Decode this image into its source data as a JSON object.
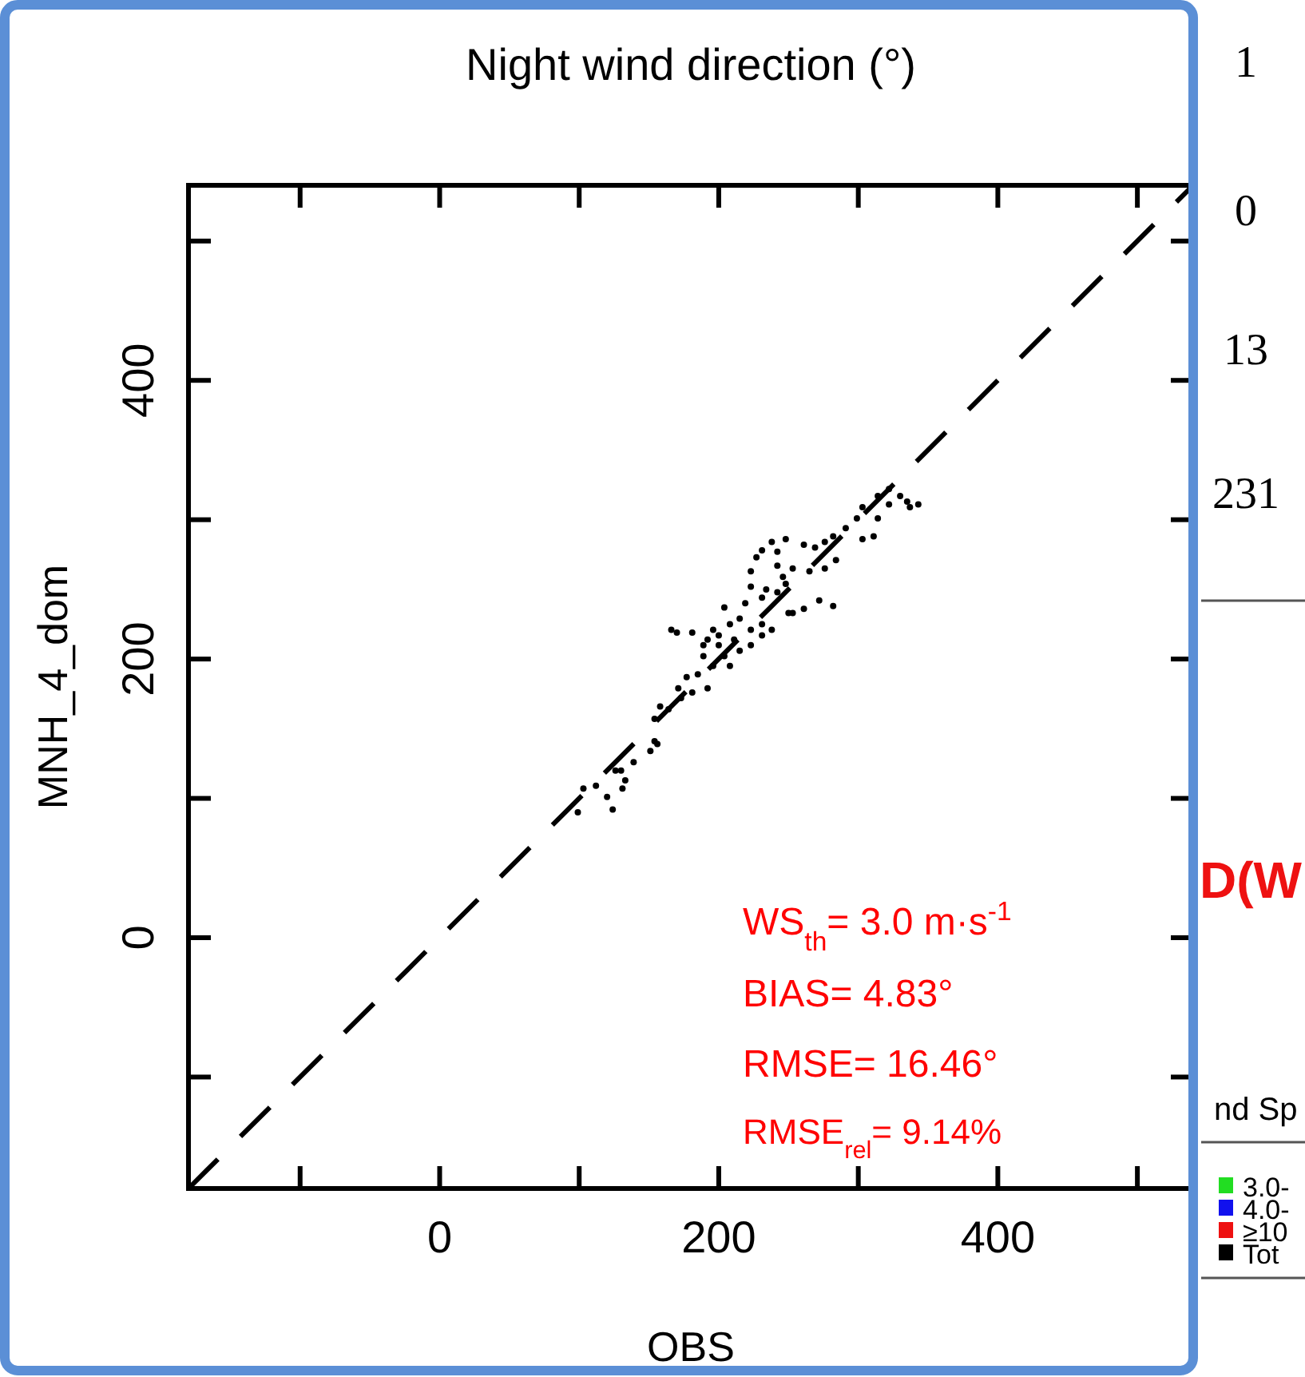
{
  "chart_data": {
    "type": "scatter",
    "title": "Night wind direction (°)",
    "xlabel": "OBS",
    "ylabel": "MNH_4_dom",
    "xlim": [
      -180,
      540
    ],
    "ylim": [
      -180,
      540
    ],
    "xticks": [
      {
        "value": -100,
        "label": null
      },
      0,
      {
        "value": 100,
        "label": null
      },
      200,
      {
        "value": 300,
        "label": null
      },
      400,
      {
        "value": 500,
        "label": null
      }
    ],
    "yticks": [
      {
        "value": -100,
        "label": null
      },
      0,
      {
        "value": 100,
        "label": null
      },
      200,
      {
        "value": 300,
        "label": null
      },
      400,
      {
        "value": 500,
        "label": null
      }
    ],
    "grid": false,
    "series": [
      {
        "color": "#000000",
        "marker": "circle",
        "x": [
          99,
          103,
          112,
          124,
          120,
          133,
          130,
          139,
          151,
          156,
          154,
          164,
          158,
          173,
          181,
          171,
          177,
          185,
          192,
          196,
          189,
          170,
          181,
          200,
          211,
          223,
          208,
          215,
          204,
          219,
          231,
          223,
          234,
          242,
          250,
          238,
          231,
          248,
          223,
          227,
          231,
          238,
          248,
          242,
          261,
          269,
          276,
          282,
          291,
          299,
          303,
          314,
          322,
          330,
          337,
          343,
          335,
          322,
          314,
          311,
          303,
          284,
          276,
          265,
          253,
          246,
          242,
          272,
          282,
          261,
          253,
          231,
          223,
          166,
          189,
          204,
          215,
          196,
          192,
          200,
          208,
          154,
          126,
          131
        ],
        "values": [
          90,
          107,
          109,
          92,
          101,
          113,
          120,
          126,
          134,
          139,
          157,
          164,
          166,
          172,
          176,
          179,
          187,
          189,
          179,
          195,
          202,
          219,
          219,
          210,
          214,
          210,
          225,
          229,
          237,
          240,
          244,
          252,
          250,
          248,
          233,
          221,
          217,
          254,
          263,
          273,
          278,
          284,
          286,
          277,
          282,
          280,
          284,
          288,
          294,
          301,
          309,
          317,
          322,
          317,
          309,
          311,
          313,
          311,
          301,
          288,
          286,
          271,
          265,
          263,
          265,
          259,
          267,
          242,
          238,
          236,
          233,
          225,
          221,
          221,
          210,
          202,
          206,
          221,
          214,
          217,
          195,
          141,
          120,
          107
        ]
      },
      {
        "type": "line",
        "color": "#000000",
        "line_style": "dashed",
        "x": [
          -180,
          540
        ],
        "values": [
          -180,
          540
        ]
      }
    ],
    "annotations": [
      "WS$_{th}$= 3.0 m·s$^{-1}$",
      "BIAS=  4.83°",
      "RMSE= 16.46°",
      "RMSE$_{rel}$= 9.14%",
      "1",
      "0",
      "13",
      "231",
      "D(W",
      "nd Sp",
      "3.0-",
      "4.0-",
      "≥10",
      "Tot"
    ]
  }
}
